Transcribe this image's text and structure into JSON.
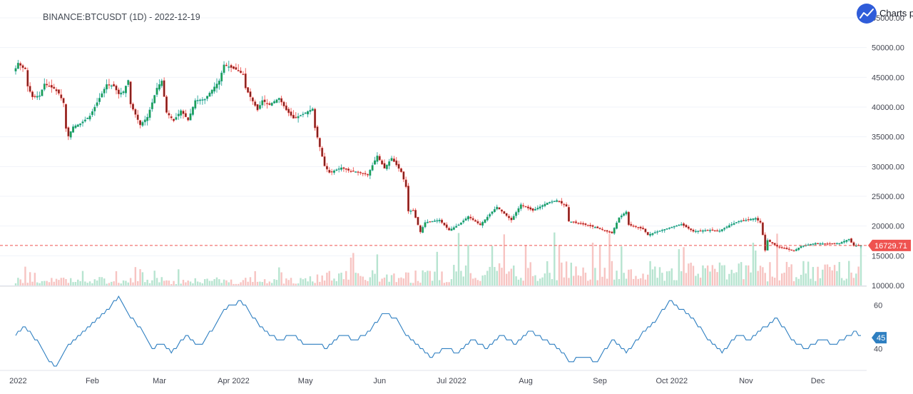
{
  "header": {
    "title": "BINANCE:BTCUSDT (1D) - 2022-12-19",
    "brand_label": "Charts p"
  },
  "colors": {
    "up": "#26a69a",
    "down": "#ef5350",
    "up_body": "#1e9e4a",
    "down_body": "#7a1f1b",
    "volume_up": "#b7e4d0",
    "volume_down": "#f7c4c2",
    "indicator": "#2e7fc1",
    "price_line": "#ef5350",
    "price_badge": "#ef5350",
    "indicator_badge": "#2e7fc1",
    "grid": "#f0f3fa",
    "brand": "#2f5cd9"
  },
  "chart_data": [
    {
      "type": "candlestick",
      "title": "BINANCE:BTCUSDT (1D) - 2022-12-19",
      "x_ticks": [
        "2022",
        "Feb",
        "Mar",
        "Apr 2022",
        "May",
        "Jun",
        "Jul 2022",
        "Aug",
        "Sep",
        "Oct 2022",
        "Nov",
        "Dec"
      ],
      "y_ticks": [
        "55000.00",
        "50000.00",
        "45000.00",
        "40000.00",
        "35000.00",
        "30000.00",
        "25000.00",
        "20000.00",
        "15000.00",
        "10000.00"
      ],
      "ylim": [
        10000,
        55000
      ],
      "x_range": [
        "2021-12-31",
        "2022-12-19"
      ],
      "last_price": 16729.71,
      "last_price_label": "16729.71",
      "anchors": [
        [
          "2021-12-31",
          46500
        ],
        [
          "2022-01-01",
          47400
        ],
        [
          "2022-01-03",
          46600
        ],
        [
          "2022-01-04",
          46400
        ],
        [
          "2022-01-05",
          43500
        ],
        [
          "2022-01-07",
          41700
        ],
        [
          "2022-01-10",
          41900
        ],
        [
          "2022-01-12",
          43900
        ],
        [
          "2022-01-16",
          43100
        ],
        [
          "2022-01-18",
          42300
        ],
        [
          "2022-01-20",
          40700
        ],
        [
          "2022-01-21",
          36400
        ],
        [
          "2022-01-22",
          35100
        ],
        [
          "2022-01-24",
          36700
        ],
        [
          "2022-01-27",
          37200
        ],
        [
          "2022-01-31",
          38500
        ],
        [
          "2022-02-04",
          41500
        ],
        [
          "2022-02-07",
          43800
        ],
        [
          "2022-02-10",
          43500
        ],
        [
          "2022-02-12",
          42200
        ],
        [
          "2022-02-14",
          42600
        ],
        [
          "2022-02-16",
          44500
        ],
        [
          "2022-02-17",
          40500
        ],
        [
          "2022-02-21",
          37000
        ],
        [
          "2022-02-24",
          38300
        ],
        [
          "2022-02-28",
          43200
        ],
        [
          "2022-03-02",
          44400
        ],
        [
          "2022-03-04",
          39100
        ],
        [
          "2022-03-07",
          37700
        ],
        [
          "2022-03-10",
          39400
        ],
        [
          "2022-03-13",
          37800
        ],
        [
          "2022-03-16",
          41100
        ],
        [
          "2022-03-20",
          41300
        ],
        [
          "2022-03-23",
          42900
        ],
        [
          "2022-03-26",
          44400
        ],
        [
          "2022-03-28",
          47100
        ],
        [
          "2022-04-02",
          46300
        ],
        [
          "2022-04-05",
          45500
        ],
        [
          "2022-04-06",
          43200
        ],
        [
          "2022-04-11",
          39500
        ],
        [
          "2022-04-13",
          41100
        ],
        [
          "2022-04-16",
          40400
        ],
        [
          "2022-04-20",
          41500
        ],
        [
          "2022-04-23",
          39500
        ],
        [
          "2022-04-26",
          38100
        ],
        [
          "2022-04-29",
          38600
        ],
        [
          "2022-05-04",
          39700
        ],
        [
          "2022-05-05",
          36500
        ],
        [
          "2022-05-09",
          30100
        ],
        [
          "2022-05-11",
          29000
        ],
        [
          "2022-05-13",
          29300
        ],
        [
          "2022-05-16",
          29800
        ],
        [
          "2022-05-20",
          29200
        ],
        [
          "2022-05-23",
          29100
        ],
        [
          "2022-05-27",
          28600
        ],
        [
          "2022-05-31",
          31800
        ],
        [
          "2022-06-03",
          29700
        ],
        [
          "2022-06-06",
          31400
        ],
        [
          "2022-06-10",
          29100
        ],
        [
          "2022-06-12",
          26600
        ],
        [
          "2022-06-13",
          22500
        ],
        [
          "2022-06-15",
          22600
        ],
        [
          "2022-06-18",
          19000
        ],
        [
          "2022-06-20",
          20600
        ],
        [
          "2022-06-26",
          21000
        ],
        [
          "2022-06-30",
          19300
        ],
        [
          "2022-07-04",
          20200
        ],
        [
          "2022-07-08",
          21600
        ],
        [
          "2022-07-13",
          20200
        ],
        [
          "2022-07-18",
          22400
        ],
        [
          "2022-07-20",
          23200
        ],
        [
          "2022-07-26",
          21000
        ],
        [
          "2022-07-30",
          23600
        ],
        [
          "2022-08-04",
          22600
        ],
        [
          "2022-08-10",
          23900
        ],
        [
          "2022-08-14",
          24300
        ],
        [
          "2022-08-18",
          23300
        ],
        [
          "2022-08-19",
          20800
        ],
        [
          "2022-08-26",
          20200
        ],
        [
          "2022-08-30",
          19800
        ],
        [
          "2022-09-06",
          18800
        ],
        [
          "2022-09-09",
          21400
        ],
        [
          "2022-09-12",
          22400
        ],
        [
          "2022-09-13",
          20200
        ],
        [
          "2022-09-19",
          19500
        ],
        [
          "2022-09-21",
          18500
        ],
        [
          "2022-09-26",
          19200
        ],
        [
          "2022-10-05",
          20300
        ],
        [
          "2022-10-10",
          19100
        ],
        [
          "2022-10-16",
          19300
        ],
        [
          "2022-10-21",
          19200
        ],
        [
          "2022-10-25",
          20100
        ],
        [
          "2022-10-29",
          20800
        ],
        [
          "2022-11-05",
          21300
        ],
        [
          "2022-11-07",
          20600
        ],
        [
          "2022-11-08",
          18500
        ],
        [
          "2022-11-09",
          15900
        ],
        [
          "2022-11-10",
          17600
        ],
        [
          "2022-11-14",
          16600
        ],
        [
          "2022-11-21",
          15800
        ],
        [
          "2022-11-24",
          16600
        ],
        [
          "2022-11-30",
          17100
        ],
        [
          "2022-12-05",
          17000
        ],
        [
          "2022-12-10",
          17100
        ],
        [
          "2022-12-14",
          17800
        ],
        [
          "2022-12-16",
          16700
        ],
        [
          "2022-12-19",
          16729.71
        ]
      ]
    },
    {
      "type": "line",
      "series": [
        {
          "values": []
        }
      ],
      "y_ticks": [
        "60",
        "40"
      ],
      "ylim": [
        30,
        65
      ],
      "last_value": 45,
      "last_value_label": "45",
      "anchors": [
        [
          "2021-12-31",
          46
        ],
        [
          "2022-01-03",
          50
        ],
        [
          "2022-01-07",
          46
        ],
        [
          "2022-01-10",
          42
        ],
        [
          "2022-01-14",
          34
        ],
        [
          "2022-01-17",
          32
        ],
        [
          "2022-01-21",
          40
        ],
        [
          "2022-01-25",
          44
        ],
        [
          "2022-01-31",
          50
        ],
        [
          "2022-02-08",
          58
        ],
        [
          "2022-02-12",
          64
        ],
        [
          "2022-02-16",
          56
        ],
        [
          "2022-02-22",
          48
        ],
        [
          "2022-02-26",
          40
        ],
        [
          "2022-03-02",
          42
        ],
        [
          "2022-03-06",
          38
        ],
        [
          "2022-03-12",
          46
        ],
        [
          "2022-03-18",
          41
        ],
        [
          "2022-03-24",
          50
        ],
        [
          "2022-03-28",
          58
        ],
        [
          "2022-04-04",
          62
        ],
        [
          "2022-04-08",
          56
        ],
        [
          "2022-04-14",
          48
        ],
        [
          "2022-04-20",
          44
        ],
        [
          "2022-04-26",
          46
        ],
        [
          "2022-05-02",
          41
        ],
        [
          "2022-05-06",
          42
        ],
        [
          "2022-05-10",
          40
        ],
        [
          "2022-05-16",
          46
        ],
        [
          "2022-05-22",
          44
        ],
        [
          "2022-05-28",
          48
        ],
        [
          "2022-06-02",
          56
        ],
        [
          "2022-06-08",
          54
        ],
        [
          "2022-06-12",
          46
        ],
        [
          "2022-06-16",
          42
        ],
        [
          "2022-06-22",
          36
        ],
        [
          "2022-06-28",
          40
        ],
        [
          "2022-07-04",
          38
        ],
        [
          "2022-07-10",
          44
        ],
        [
          "2022-07-16",
          40
        ],
        [
          "2022-07-22",
          46
        ],
        [
          "2022-07-28",
          42
        ],
        [
          "2022-08-03",
          48
        ],
        [
          "2022-08-09",
          44
        ],
        [
          "2022-08-15",
          40
        ],
        [
          "2022-08-19",
          34
        ],
        [
          "2022-08-25",
          36
        ],
        [
          "2022-08-31",
          34
        ],
        [
          "2022-09-06",
          44
        ],
        [
          "2022-09-12",
          38
        ],
        [
          "2022-09-18",
          46
        ],
        [
          "2022-09-24",
          52
        ],
        [
          "2022-09-30",
          62
        ],
        [
          "2022-10-05",
          58
        ],
        [
          "2022-10-10",
          54
        ],
        [
          "2022-10-16",
          44
        ],
        [
          "2022-10-22",
          38
        ],
        [
          "2022-10-28",
          46
        ],
        [
          "2022-11-03",
          44
        ],
        [
          "2022-11-09",
          50
        ],
        [
          "2022-11-14",
          54
        ],
        [
          "2022-11-20",
          44
        ],
        [
          "2022-11-26",
          40
        ],
        [
          "2022-12-02",
          44
        ],
        [
          "2022-12-08",
          42
        ],
        [
          "2022-12-14",
          46
        ],
        [
          "2022-12-17",
          48
        ],
        [
          "2022-12-19",
          45
        ]
      ]
    }
  ]
}
